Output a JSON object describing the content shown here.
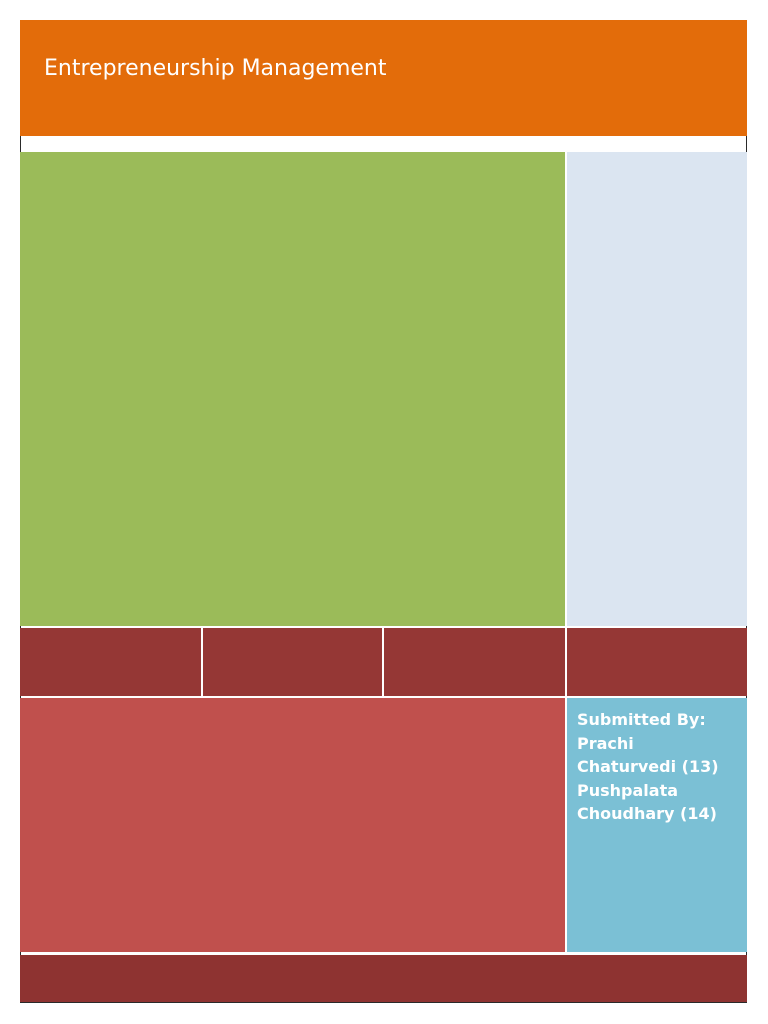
{
  "document": {
    "title": "Entrepreneurship Management",
    "submitted_by": {
      "label": "Submitted By:",
      "lines": [
        "Prachi",
        "Chaturvedi (13)",
        "Pushpalata",
        "Choudhary (14)"
      ]
    }
  },
  "colors": {
    "title_band": "#e36c0a",
    "green_panel": "#9bbb59",
    "light_blue_panel": "#dbe5f1",
    "maroon_band": "#953735",
    "red_panel": "#c0504d",
    "aqua_panel": "#7bc0d5",
    "footer_band": "#8e3331"
  }
}
